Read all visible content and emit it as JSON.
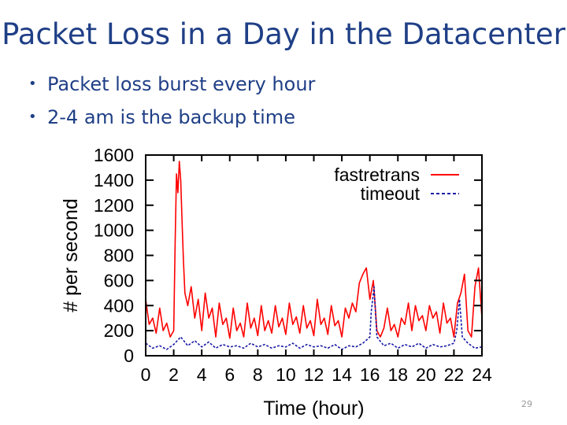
{
  "slide": {
    "title": "Packet Loss in a Day in the Datacenter",
    "bullets": [
      "Packet loss burst every hour",
      "2-4 am is the backup time"
    ],
    "page_number": "29"
  },
  "colors": {
    "title": "#1f3f86",
    "fastretrans": "#ff0000",
    "timeout": "#1a1aa6"
  },
  "chart_data": {
    "type": "line",
    "title": "",
    "xlabel": "Time (hour)",
    "ylabel": "# per second",
    "xlim": [
      0,
      24
    ],
    "ylim": [
      0,
      1600
    ],
    "xticks": [
      0,
      2,
      4,
      6,
      8,
      10,
      12,
      14,
      16,
      18,
      20,
      22,
      24
    ],
    "yticks": [
      0,
      200,
      400,
      600,
      800,
      1000,
      1200,
      1400,
      1600
    ],
    "grid": false,
    "legend_position": "top-right",
    "series": [
      {
        "name": "fastretrans",
        "style": "solid",
        "x": [
          0,
          0.25,
          0.5,
          0.75,
          1,
          1.25,
          1.5,
          1.75,
          2,
          2.1,
          2.2,
          2.3,
          2.4,
          2.5,
          2.6,
          2.7,
          2.8,
          3,
          3.25,
          3.5,
          3.75,
          4,
          4.25,
          4.5,
          4.75,
          5,
          5.25,
          5.5,
          5.75,
          6,
          6.25,
          6.5,
          6.75,
          7,
          7.25,
          7.5,
          7.75,
          8,
          8.25,
          8.5,
          8.75,
          9,
          9.25,
          9.5,
          9.75,
          10,
          10.25,
          10.5,
          10.75,
          11,
          11.25,
          11.5,
          11.75,
          12,
          12.25,
          12.5,
          12.75,
          13,
          13.25,
          13.5,
          13.75,
          14,
          14.25,
          14.5,
          14.75,
          15,
          15.25,
          15.5,
          15.75,
          16,
          16.25,
          16.5,
          16.75,
          17,
          17.25,
          17.5,
          17.75,
          18,
          18.25,
          18.5,
          18.75,
          19,
          19.25,
          19.5,
          19.75,
          20,
          20.25,
          20.5,
          20.75,
          21,
          21.25,
          21.5,
          21.75,
          22,
          22.25,
          22.5,
          22.75,
          23,
          23.25,
          23.5,
          23.75,
          24
        ],
        "y": [
          450,
          250,
          300,
          180,
          380,
          200,
          260,
          150,
          200,
          900,
          1450,
          1300,
          1550,
          1400,
          1050,
          750,
          500,
          400,
          550,
          300,
          450,
          200,
          500,
          300,
          380,
          150,
          420,
          250,
          300,
          140,
          380,
          200,
          260,
          150,
          420,
          220,
          300,
          160,
          400,
          200,
          280,
          180,
          400,
          230,
          300,
          170,
          420,
          250,
          310,
          180,
          400,
          220,
          280,
          160,
          450,
          250,
          300,
          170,
          400,
          240,
          280,
          150,
          380,
          300,
          420,
          350,
          580,
          650,
          700,
          450,
          600,
          200,
          150,
          220,
          380,
          200,
          250,
          150,
          300,
          250,
          420,
          200,
          400,
          280,
          320,
          200,
          400,
          300,
          350,
          180,
          420,
          260,
          300,
          150,
          420,
          500,
          650,
          200,
          150,
          550,
          700,
          300
        ],
        "color": "#ff0000"
      },
      {
        "name": "timeout",
        "style": "dashed",
        "x": [
          0,
          0.5,
          1,
          1.5,
          2,
          2.5,
          3,
          3.5,
          4,
          4.5,
          5,
          5.5,
          6,
          6.5,
          7,
          7.5,
          8,
          8.5,
          9,
          9.5,
          10,
          10.5,
          11,
          11.5,
          12,
          12.5,
          13,
          13.5,
          14,
          14.5,
          15,
          15.5,
          16,
          16.1,
          16.3,
          16.5,
          17,
          17.5,
          18,
          18.5,
          19,
          19.5,
          20,
          20.5,
          21,
          21.5,
          22,
          22.2,
          22.4,
          22.6,
          23,
          23.5,
          24
        ],
        "y": [
          100,
          60,
          80,
          50,
          90,
          150,
          80,
          120,
          70,
          110,
          60,
          90,
          70,
          80,
          60,
          100,
          70,
          90,
          60,
          80,
          70,
          100,
          60,
          90,
          70,
          80,
          60,
          90,
          50,
          80,
          70,
          100,
          150,
          350,
          550,
          150,
          80,
          100,
          60,
          90,
          70,
          100,
          60,
          90,
          70,
          80,
          100,
          200,
          450,
          150,
          100,
          60,
          70
        ],
        "color": "#1a1aa6"
      }
    ]
  }
}
